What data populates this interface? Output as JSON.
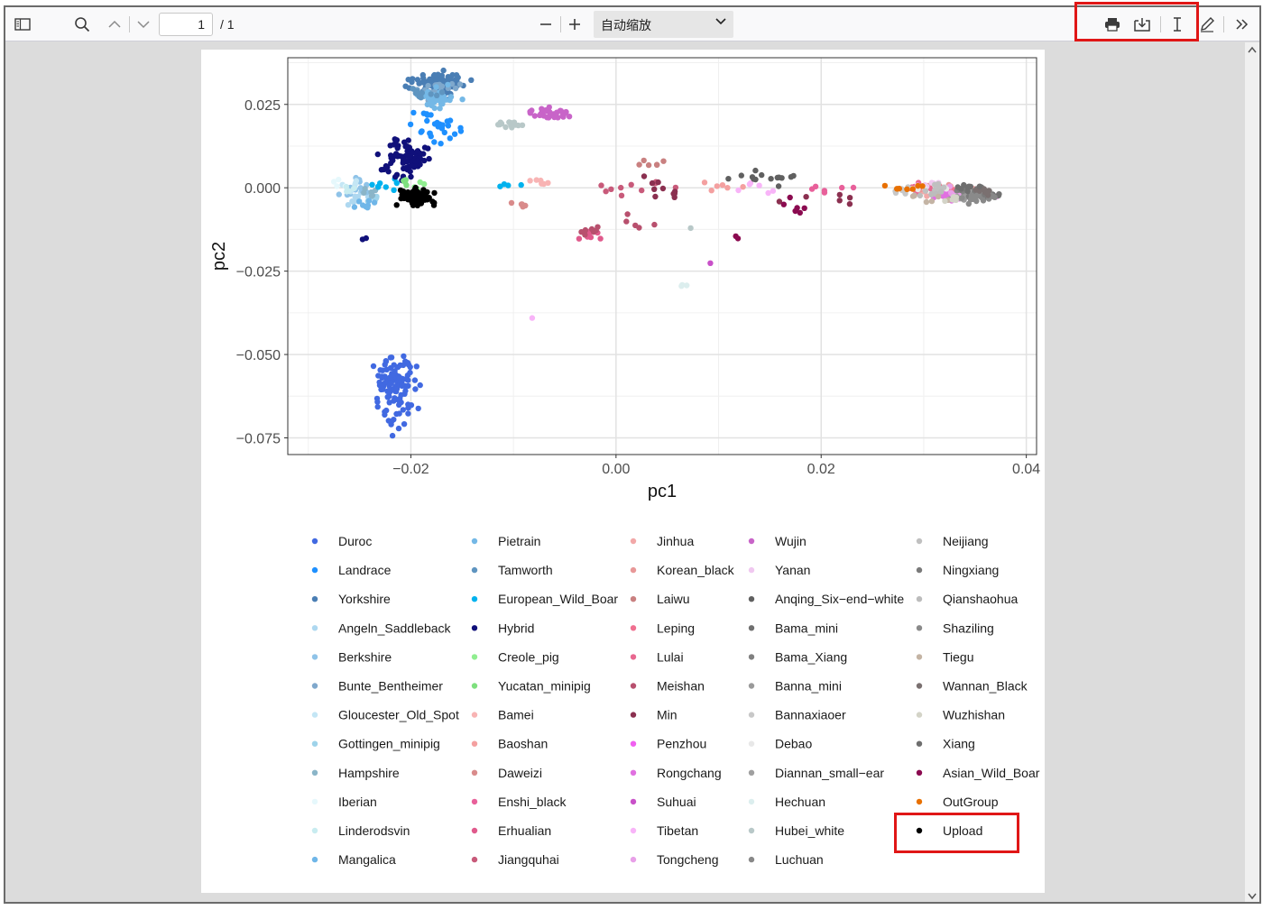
{
  "toolbar": {
    "sidebar_icon": "sidebar-toggle-icon",
    "search_icon": "search-icon",
    "prev_icon": "chevron-up-icon",
    "next_icon": "chevron-down-icon",
    "page_number": "1",
    "page_total": "/ 1",
    "zoom_out_icon": "minus-icon",
    "zoom_in_icon": "plus-icon",
    "zoom_value": "自动缩放",
    "print_icon": "print-icon",
    "save_icon": "download-icon",
    "text_select_icon": "text-cursor-icon",
    "draw_icon": "pencil-icon",
    "more_icon": "double-chevron-right-icon"
  },
  "highlight_color": "#e01616",
  "chart_data": {
    "type": "scatter",
    "xlabel": "pc1",
    "ylabel": "pc2",
    "xlim": [
      -0.032,
      0.041
    ],
    "ylim": [
      -0.08,
      0.039
    ],
    "xticks": [
      "−0.02",
      "0.00",
      "0.02",
      "0.04"
    ],
    "xtick_values": [
      -0.02,
      0.0,
      0.02,
      0.04
    ],
    "yticks": [
      "0.025",
      "0.000",
      "−0.025",
      "−0.050",
      "−0.075"
    ],
    "ytick_values": [
      0.025,
      0.0,
      -0.025,
      -0.05,
      -0.075
    ],
    "grid": true,
    "legend_position": "bottom",
    "series": [
      {
        "name": "Duroc",
        "color": "#4169e1",
        "clusters": [
          [
            -0.0215,
            -0.0605,
            0.0015,
            0.0085,
            110
          ]
        ]
      },
      {
        "name": "Landrace",
        "color": "#1e90ff",
        "clusters": [
          [
            -0.0175,
            0.018,
            0.0022,
            0.0035,
            30
          ]
        ]
      },
      {
        "name": "Yorkshire",
        "color": "#4a7eb4",
        "clusters": [
          [
            -0.0175,
            0.031,
            0.0022,
            0.0035,
            90
          ]
        ]
      },
      {
        "name": "Angeln_Saddleback",
        "color": "#aed8f0",
        "clusters": [
          [
            -0.025,
            -0.004,
            0.0015,
            0.002,
            10
          ]
        ]
      },
      {
        "name": "Berkshire",
        "color": "#8fc3e8",
        "clusters": [
          [
            -0.025,
            0.0,
            0.0015,
            0.0025,
            15
          ]
        ]
      },
      {
        "name": "Bunte_Bentheimer",
        "color": "#7fa8cc",
        "clusters": [
          [
            -0.0175,
            0.03,
            0.002,
            0.003,
            20
          ]
        ]
      },
      {
        "name": "Gloucester_Old_Spot",
        "color": "#c4e6f5",
        "clusters": [
          [
            -0.0255,
            0.001,
            0.001,
            0.002,
            6
          ]
        ]
      },
      {
        "name": "Gottingen_minipig",
        "color": "#9ed3ea",
        "clusters": [
          [
            -0.0235,
            -0.003,
            0.0012,
            0.0018,
            6
          ]
        ]
      },
      {
        "name": "Hampshire",
        "color": "#8ab5c8",
        "clusters": [
          [
            -0.0245,
            -0.002,
            0.0012,
            0.0018,
            6
          ]
        ]
      },
      {
        "name": "Iberian",
        "color": "#e6f8fc",
        "clusters": [
          [
            -0.027,
            0.001,
            0.0008,
            0.0012,
            4
          ]
        ]
      },
      {
        "name": "Linderodsvin",
        "color": "#c8ecf0",
        "clusters": [
          [
            -0.0265,
            -0.001,
            0.001,
            0.0015,
            4
          ]
        ]
      },
      {
        "name": "Mangalica",
        "color": "#6fb6e8",
        "clusters": [
          [
            -0.0245,
            -0.005,
            0.0012,
            0.0015,
            8
          ]
        ]
      },
      {
        "name": "Pietrain",
        "color": "#74b8e6",
        "clusters": [
          [
            -0.0175,
            0.027,
            0.0018,
            0.0025,
            40
          ]
        ]
      },
      {
        "name": "Tamworth",
        "color": "#5f95c0",
        "clusters": [
          [
            -0.0185,
            0.028,
            0.0015,
            0.002,
            10
          ]
        ]
      },
      {
        "name": "European_Wild_Boar",
        "color": "#00b2ee",
        "clusters": [
          [
            -0.0225,
            0.001,
            0.0012,
            0.0018,
            8
          ],
          [
            -0.0105,
            0.001,
            0.001,
            0.0006,
            4
          ]
        ]
      },
      {
        "name": "Hybrid",
        "color": "#10107a",
        "clusters": [
          [
            -0.0205,
            0.009,
            0.0018,
            0.006,
            80
          ],
          [
            -0.0245,
            -0.015,
            0.0003,
            0.0005,
            2
          ]
        ]
      },
      {
        "name": "Creole_pig",
        "color": "#90ee90",
        "clusters": [
          [
            -0.0195,
            0.0,
            0.0008,
            0.0015,
            5
          ]
        ]
      },
      {
        "name": "Yucatan_minipig",
        "color": "#7ee07e",
        "clusters": [
          [
            -0.0205,
            0.002,
            0.0008,
            0.0012,
            4
          ]
        ]
      },
      {
        "name": "Bamei",
        "color": "#f8b4b4",
        "clusters": [
          [
            -0.0075,
            0.002,
            0.0012,
            0.001,
            6
          ]
        ]
      },
      {
        "name": "Baoshan",
        "color": "#f4a0a0",
        "clusters": [
          [
            0.009,
            0.001,
            0.003,
            0.0015,
            6
          ]
        ]
      },
      {
        "name": "Daweizi",
        "color": "#d98b8b",
        "clusters": [
          [
            -0.0095,
            -0.005,
            0.0012,
            0.0012,
            5
          ]
        ]
      },
      {
        "name": "Enshi_black",
        "color": "#e8609a",
        "clusters": [
          [
            0.021,
            0.0,
            0.002,
            0.0015,
            6
          ]
        ]
      },
      {
        "name": "Erhualian",
        "color": "#e05a8c",
        "clusters": [
          [
            -0.003,
            -0.014,
            0.0015,
            0.0015,
            8
          ]
        ]
      },
      {
        "name": "Jiangquhai",
        "color": "#c85a7a",
        "clusters": [
          [
            0.001,
            0.0,
            0.004,
            0.003,
            10
          ]
        ]
      },
      {
        "name": "Jinhua",
        "color": "#f2a8a8",
        "clusters": [
          [
            0.033,
            -0.001,
            0.003,
            0.0015,
            20
          ]
        ]
      },
      {
        "name": "Korean_black",
        "color": "#e89898",
        "clusters": [
          [
            0.031,
            0.0,
            0.002,
            0.0012,
            10
          ]
        ]
      },
      {
        "name": "Laiwu",
        "color": "#c98080",
        "clusters": [
          [
            0.0035,
            0.007,
            0.002,
            0.0015,
            6
          ]
        ]
      },
      {
        "name": "Leping",
        "color": "#f07090",
        "clusters": [
          [
            0.034,
            -0.002,
            0.002,
            0.0015,
            15
          ]
        ]
      },
      {
        "name": "Lulai",
        "color": "#e86890",
        "clusters": [
          [
            0.029,
            0.0,
            0.002,
            0.0015,
            8
          ]
        ]
      },
      {
        "name": "Meishan",
        "color": "#b8506e",
        "clusters": [
          [
            -0.0025,
            -0.013,
            0.0012,
            0.0012,
            8
          ],
          [
            0.0015,
            -0.009,
            0.002,
            0.003,
            5
          ]
        ]
      },
      {
        "name": "Min",
        "color": "#8b3050",
        "clusters": [
          [
            0.0045,
            0.0,
            0.003,
            0.0035,
            10
          ],
          [
            0.02,
            -0.003,
            0.004,
            0.002,
            6
          ]
        ]
      },
      {
        "name": "Penzhou",
        "color": "#f060f0",
        "clusters": [
          [
            0.0335,
            -0.002,
            0.0022,
            0.0015,
            12
          ]
        ]
      },
      {
        "name": "Rongchang",
        "color": "#e070e0",
        "clusters": [
          [
            0.033,
            -0.003,
            0.002,
            0.0015,
            10
          ]
        ]
      },
      {
        "name": "Suhuai",
        "color": "#c850c8",
        "clusters": [
          [
            0.0095,
            -0.023,
            0.0003,
            0.0005,
            1
          ],
          [
            0.035,
            -0.002,
            0.0015,
            0.001,
            5
          ]
        ]
      },
      {
        "name": "Tibetan",
        "color": "#f8b4f8",
        "clusters": [
          [
            -0.008,
            -0.039,
            0.0002,
            0.0002,
            1
          ],
          [
            0.015,
            0.0,
            0.003,
            0.0015,
            6
          ]
        ]
      },
      {
        "name": "Tongcheng",
        "color": "#e8a0e8",
        "clusters": [
          [
            0.032,
            -0.001,
            0.002,
            0.0015,
            8
          ]
        ]
      },
      {
        "name": "Wujin",
        "color": "#c864c8",
        "clusters": [
          [
            -0.0065,
            0.022,
            0.002,
            0.0015,
            35
          ]
        ]
      },
      {
        "name": "Yanan",
        "color": "#f0c8f0",
        "clusters": [
          [
            0.03,
            0.001,
            0.002,
            0.0012,
            6
          ]
        ]
      },
      {
        "name": "Anqing_Six−end−white",
        "color": "#606060",
        "clusters": [
          [
            0.015,
            0.003,
            0.0035,
            0.002,
            14
          ]
        ]
      },
      {
        "name": "Bama_mini",
        "color": "#707070",
        "clusters": [
          [
            0.036,
            -0.002,
            0.0012,
            0.001,
            20
          ]
        ]
      },
      {
        "name": "Bama_Xiang",
        "color": "#808080",
        "clusters": [
          [
            0.035,
            -0.001,
            0.0015,
            0.0012,
            15
          ]
        ]
      },
      {
        "name": "Banna_mini",
        "color": "#9a9a9a",
        "clusters": [
          [
            0.034,
            -0.003,
            0.0015,
            0.001,
            10
          ]
        ]
      },
      {
        "name": "Bannaxiaoer",
        "color": "#c8c8c8",
        "clusters": [
          [
            0.028,
            -0.001,
            0.002,
            0.0012,
            8
          ]
        ]
      },
      {
        "name": "Debao",
        "color": "#e8e8e8",
        "clusters": [
          [
            0.03,
            0.0,
            0.002,
            0.0012,
            6
          ]
        ]
      },
      {
        "name": "Diannan_small−ear",
        "color": "#a0a0a0",
        "clusters": [
          [
            0.0355,
            -0.001,
            0.001,
            0.0012,
            10
          ]
        ]
      },
      {
        "name": "Hechuan",
        "color": "#dceeee",
        "clusters": [
          [
            0.0065,
            -0.029,
            0.0008,
            0.0012,
            3
          ]
        ]
      },
      {
        "name": "Hubei_white",
        "color": "#b8c8c8",
        "clusters": [
          [
            -0.0105,
            0.019,
            0.0015,
            0.0012,
            14
          ],
          [
            0.0075,
            -0.012,
            0.0003,
            0.0003,
            1
          ]
        ]
      },
      {
        "name": "Luchuan",
        "color": "#888888",
        "clusters": [
          [
            0.036,
            -0.0025,
            0.001,
            0.0012,
            12
          ]
        ]
      },
      {
        "name": "Neijiang",
        "color": "#c0c0c0",
        "clusters": [
          [
            0.032,
            0.0,
            0.002,
            0.0015,
            8
          ]
        ]
      },
      {
        "name": "Ningxiang",
        "color": "#7a7a7a",
        "clusters": [
          [
            0.035,
            -0.001,
            0.0012,
            0.0012,
            12
          ]
        ]
      },
      {
        "name": "Qianshaohua",
        "color": "#bcbcbc",
        "clusters": [
          [
            0.031,
            -0.002,
            0.002,
            0.0012,
            6
          ]
        ]
      },
      {
        "name": "Shaziling",
        "color": "#8a8a8a",
        "clusters": [
          [
            0.0345,
            -0.003,
            0.0012,
            0.0012,
            10
          ]
        ]
      },
      {
        "name": "Tiegu",
        "color": "#c4b4a4",
        "clusters": [
          [
            0.03,
            -0.003,
            0.002,
            0.0012,
            6
          ]
        ]
      },
      {
        "name": "Wannan_Black",
        "color": "#7a7070",
        "clusters": [
          [
            0.036,
            -0.001,
            0.001,
            0.001,
            10
          ]
        ]
      },
      {
        "name": "Wuzhishan",
        "color": "#d4d4c8",
        "clusters": [
          [
            0.033,
            -0.003,
            0.0015,
            0.001,
            6
          ]
        ]
      },
      {
        "name": "Xiang",
        "color": "#6e6e6e",
        "clusters": [
          [
            0.0345,
            0.0,
            0.0012,
            0.001,
            8
          ]
        ]
      },
      {
        "name": "Asian_Wild_Boar",
        "color": "#8b0a50",
        "clusters": [
          [
            0.0175,
            -0.005,
            0.003,
            0.003,
            6
          ],
          [
            0.012,
            -0.015,
            0.0008,
            0.0012,
            2
          ]
        ]
      },
      {
        "name": "OutGroup",
        "color": "#e87000",
        "clusters": [
          [
            0.028,
            0.0,
            0.0015,
            0.0008,
            8
          ]
        ]
      },
      {
        "name": "Upload",
        "color": "#000000",
        "clusters": [
          [
            -0.0195,
            -0.003,
            0.0015,
            0.0025,
            70
          ]
        ]
      }
    ]
  }
}
